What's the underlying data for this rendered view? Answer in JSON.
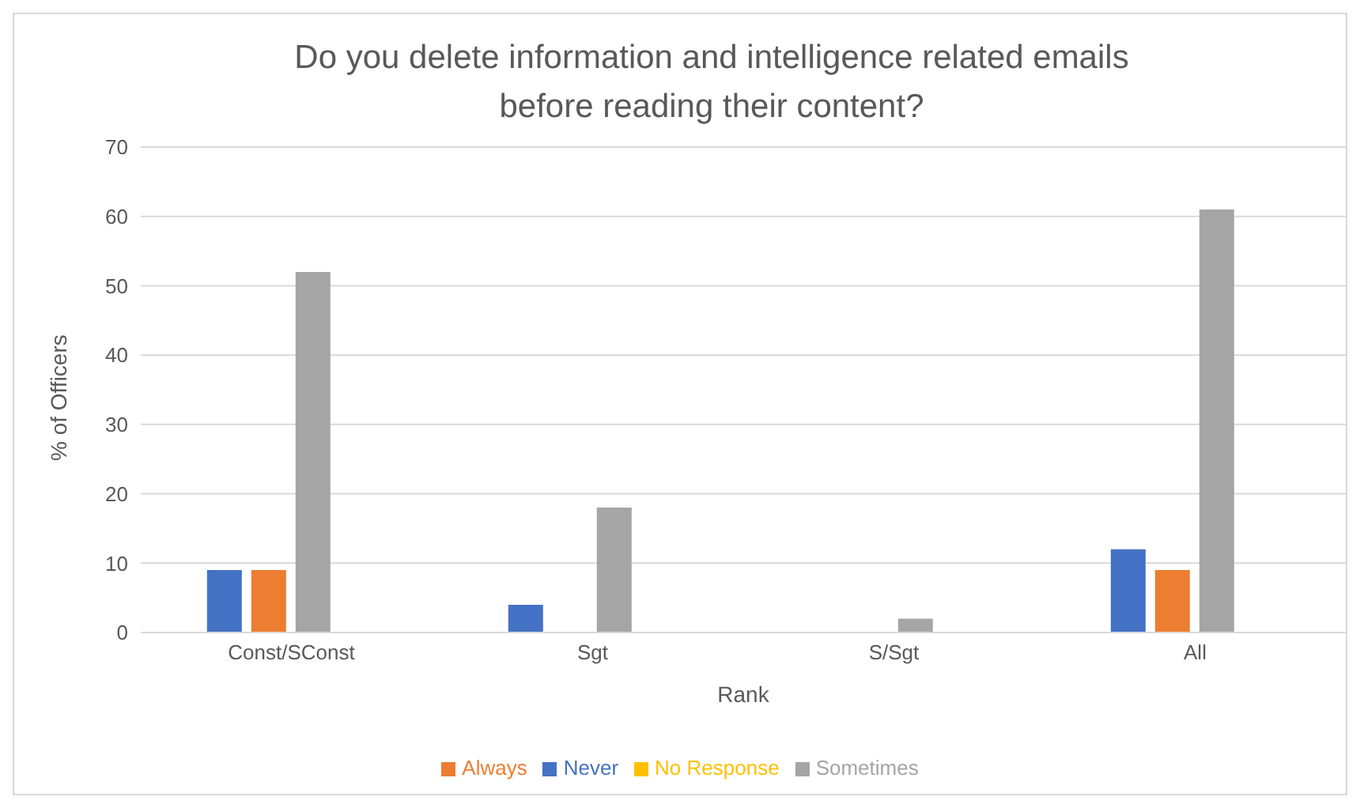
{
  "chart_data": {
    "type": "bar",
    "title": "Do you delete information and intelligence related emails\nbefore reading their content?",
    "xlabel": "Rank",
    "ylabel": "% of Officers",
    "categories": [
      "Const/SConst",
      "Sgt",
      "S/Sgt",
      "All"
    ],
    "series": [
      {
        "name": "Never",
        "color": "#4472c4",
        "values": [
          9,
          4,
          0,
          12
        ]
      },
      {
        "name": "Always",
        "color": "#ed7d31",
        "values": [
          9,
          0,
          0,
          9
        ]
      },
      {
        "name": "Sometimes",
        "color": "#a5a5a5",
        "values": [
          52,
          18,
          2,
          61
        ]
      },
      {
        "name": "No Response",
        "color": "#ffc000",
        "values": [
          0,
          0,
          0,
          0
        ]
      }
    ],
    "ylim": [
      0,
      70
    ],
    "yticks": [
      0,
      10,
      20,
      30,
      40,
      50,
      60,
      70
    ],
    "grid": "y",
    "legend": "bottom"
  }
}
